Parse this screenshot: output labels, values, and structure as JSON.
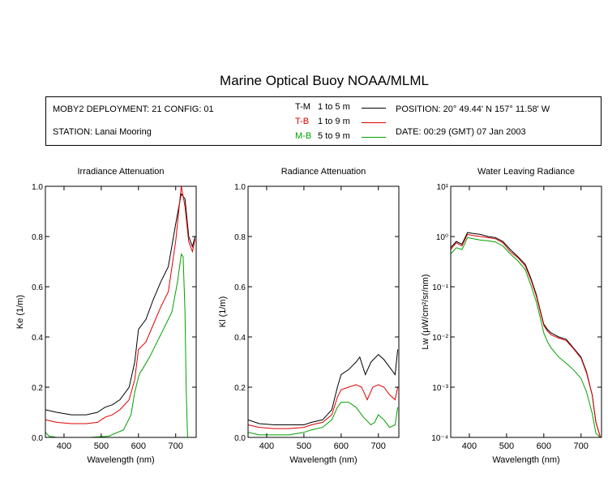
{
  "title": "Marine Optical Buoy NOAA/MLML",
  "info": {
    "deployment": "MOBY2 DEPLOYMENT: 21 CONFIG: 01",
    "station": "STATION: Lanai Mooring",
    "position": "POSITION: 20° 49.44' N   157° 11.58' W",
    "date": "DATE: 00:29 (GMT) 07 Jan 2003",
    "legend": [
      {
        "code": "T-M",
        "range": "1 to 5  m",
        "color": "#000000"
      },
      {
        "code": "T-B",
        "range": "1 to 9  m",
        "color": "#e00000"
      },
      {
        "code": "M-B",
        "range": "5 to 9  m",
        "color": "#00a000"
      }
    ]
  },
  "chart_data": [
    {
      "type": "line",
      "title": "Irradiance Attenuation",
      "xlabel": "Wavelength (nm)",
      "ylabel": "Ke  (1/m)",
      "xlim": [
        350,
        755
      ],
      "ylim": [
        0,
        1.0
      ],
      "xticks": [
        400,
        500,
        600,
        700
      ],
      "yticks": [
        0.0,
        0.2,
        0.4,
        0.6,
        0.8,
        1.0
      ],
      "ytick_labels": [
        "0.0",
        "0.2",
        "0.4",
        "0.6",
        "0.8",
        "1.0"
      ],
      "grid": false,
      "series": [
        {
          "name": "T-M",
          "color": "#000000",
          "x": [
            350,
            380,
            420,
            460,
            490,
            510,
            530,
            550,
            575,
            590,
            600,
            620,
            640,
            660,
            680,
            700,
            715,
            725,
            735,
            745,
            752
          ],
          "y": [
            0.11,
            0.1,
            0.09,
            0.09,
            0.1,
            0.12,
            0.13,
            0.15,
            0.2,
            0.3,
            0.43,
            0.47,
            0.55,
            0.62,
            0.68,
            0.85,
            0.97,
            0.95,
            0.8,
            0.76,
            0.8
          ]
        },
        {
          "name": "T-B",
          "color": "#e00000",
          "x": [
            350,
            380,
            420,
            460,
            490,
            510,
            530,
            550,
            575,
            590,
            600,
            620,
            640,
            660,
            680,
            700,
            715,
            725,
            735,
            745,
            752
          ],
          "y": [
            0.07,
            0.06,
            0.055,
            0.055,
            0.06,
            0.08,
            0.09,
            0.11,
            0.15,
            0.23,
            0.35,
            0.38,
            0.45,
            0.52,
            0.58,
            0.78,
            1.0,
            0.92,
            0.78,
            0.74,
            0.79
          ]
        },
        {
          "name": "M-B",
          "color": "#00a000",
          "x": [
            350,
            360,
            380,
            420,
            470,
            520,
            560,
            580,
            590,
            600,
            605,
            610,
            630,
            650,
            670,
            690,
            705,
            715,
            720,
            725,
            728,
            732
          ],
          "y": [
            0.02,
            0.005,
            0.0,
            0.0,
            0.0,
            0.005,
            0.03,
            0.09,
            0.18,
            0.24,
            0.26,
            0.27,
            0.32,
            0.38,
            0.44,
            0.5,
            0.62,
            0.73,
            0.72,
            0.5,
            0.2,
            0.0
          ]
        }
      ]
    },
    {
      "type": "line",
      "title": "Radiance Attenuation",
      "xlabel": "Wavelength (nm)",
      "ylabel": "Kl  (1/m)",
      "xlim": [
        350,
        755
      ],
      "ylim": [
        0,
        1.0
      ],
      "xticks": [
        400,
        500,
        600,
        700
      ],
      "yticks": [
        0.0,
        0.2,
        0.4,
        0.6,
        0.8,
        1.0
      ],
      "ytick_labels": [
        "0.0",
        "0.2",
        "0.4",
        "0.6",
        "0.8",
        "1.0"
      ],
      "grid": false,
      "series": [
        {
          "name": "T-M",
          "color": "#000000",
          "x": [
            350,
            380,
            420,
            460,
            500,
            520,
            550,
            575,
            590,
            600,
            620,
            640,
            650,
            665,
            680,
            700,
            715,
            730,
            745,
            752
          ],
          "y": [
            0.07,
            0.055,
            0.05,
            0.05,
            0.05,
            0.06,
            0.07,
            0.11,
            0.2,
            0.25,
            0.27,
            0.3,
            0.32,
            0.25,
            0.3,
            0.33,
            0.31,
            0.28,
            0.25,
            0.35
          ]
        },
        {
          "name": "T-B",
          "color": "#e00000",
          "x": [
            350,
            380,
            420,
            460,
            500,
            520,
            550,
            575,
            590,
            600,
            620,
            640,
            655,
            670,
            685,
            700,
            715,
            730,
            745,
            752
          ],
          "y": [
            0.05,
            0.04,
            0.035,
            0.035,
            0.04,
            0.05,
            0.06,
            0.09,
            0.16,
            0.19,
            0.2,
            0.21,
            0.2,
            0.15,
            0.2,
            0.21,
            0.2,
            0.17,
            0.15,
            0.2
          ]
        },
        {
          "name": "M-B",
          "color": "#00a000",
          "x": [
            350,
            380,
            420,
            460,
            500,
            520,
            550,
            575,
            590,
            600,
            620,
            640,
            660,
            680,
            690,
            700,
            715,
            730,
            745,
            752
          ],
          "y": [
            0.02,
            0.01,
            0.01,
            0.01,
            0.02,
            0.03,
            0.04,
            0.07,
            0.12,
            0.14,
            0.14,
            0.12,
            0.08,
            0.05,
            0.06,
            0.09,
            0.07,
            0.04,
            0.05,
            0.12
          ]
        }
      ]
    },
    {
      "type": "line",
      "title": "Water Leaving Radiance",
      "xlabel": "Wavelength (nm)",
      "ylabel": "Lw  (μW/cm²/sr/nm)",
      "xlim": [
        350,
        755
      ],
      "ylim": [
        0.0001,
        10
      ],
      "yscale": "log",
      "xticks": [
        400,
        500,
        600,
        700
      ],
      "ytick_labels": [
        "10⁻⁴",
        "10⁻³",
        "10⁻²",
        "10⁻¹",
        "10⁰",
        "10¹"
      ],
      "grid": false,
      "series": [
        {
          "name": "T-M",
          "color": "#000000",
          "x": [
            350,
            365,
            380,
            395,
            410,
            430,
            450,
            470,
            490,
            510,
            530,
            550,
            565,
            580,
            590,
            600,
            610,
            620,
            640,
            660,
            680,
            700,
            715,
            730,
            740,
            752
          ],
          "y": [
            0.6,
            0.8,
            0.7,
            1.2,
            1.15,
            1.1,
            1.0,
            0.95,
            0.8,
            0.55,
            0.4,
            0.28,
            0.15,
            0.07,
            0.035,
            0.018,
            0.014,
            0.012,
            0.01,
            0.009,
            0.006,
            0.004,
            0.002,
            0.0007,
            0.0002,
            0.0001
          ]
        },
        {
          "name": "T-B",
          "color": "#e00000",
          "x": [
            350,
            365,
            380,
            395,
            410,
            430,
            450,
            470,
            490,
            510,
            530,
            550,
            565,
            580,
            590,
            600,
            610,
            620,
            640,
            660,
            680,
            700,
            715,
            730,
            740,
            752
          ],
          "y": [
            0.55,
            0.75,
            0.65,
            1.1,
            1.05,
            1.0,
            0.95,
            0.9,
            0.75,
            0.5,
            0.38,
            0.26,
            0.14,
            0.065,
            0.033,
            0.017,
            0.013,
            0.011,
            0.0095,
            0.0085,
            0.0058,
            0.0038,
            0.0019,
            0.0007,
            0.0002,
            0.0001
          ]
        },
        {
          "name": "M-B",
          "color": "#00a000",
          "x": [
            350,
            365,
            380,
            395,
            410,
            430,
            450,
            470,
            490,
            510,
            530,
            550,
            565,
            580,
            590,
            600,
            610,
            620,
            640,
            660,
            680,
            700,
            715,
            730,
            740,
            752
          ],
          "y": [
            0.45,
            0.6,
            0.55,
            0.95,
            0.9,
            0.85,
            0.82,
            0.78,
            0.65,
            0.45,
            0.33,
            0.22,
            0.11,
            0.05,
            0.025,
            0.012,
            0.008,
            0.006,
            0.004,
            0.003,
            0.0022,
            0.0015,
            0.0008,
            0.0003,
            0.00012,
            0.0001
          ]
        }
      ]
    }
  ]
}
